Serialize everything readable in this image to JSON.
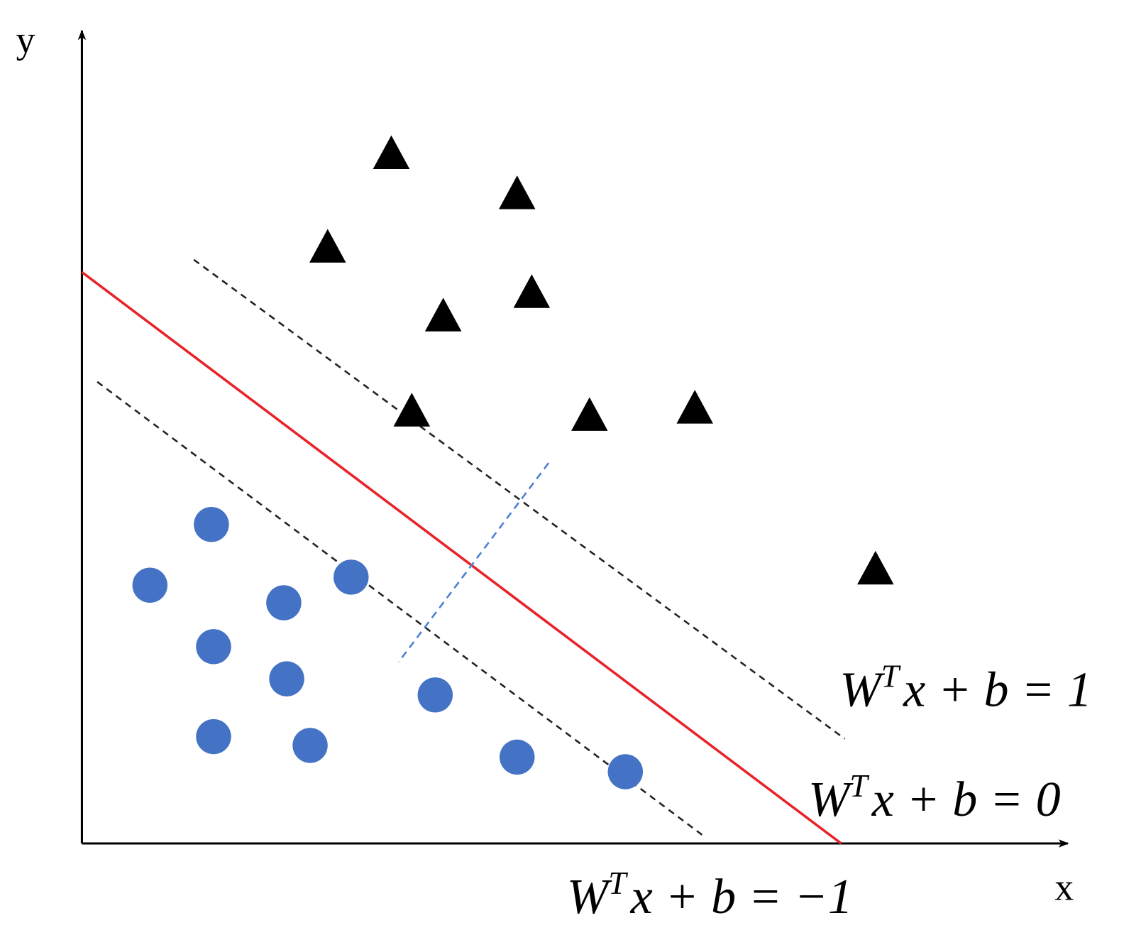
{
  "axes": {
    "y": "y",
    "x": "x"
  },
  "equations": [
    {
      "w": "W",
      "sup": "T",
      "expr": "x + b = 1"
    },
    {
      "w": "W",
      "sup": "T",
      "expr": "x + b = 0"
    },
    {
      "w": "W",
      "sup": "T",
      "expr": "x + b = −1"
    }
  ]
}
